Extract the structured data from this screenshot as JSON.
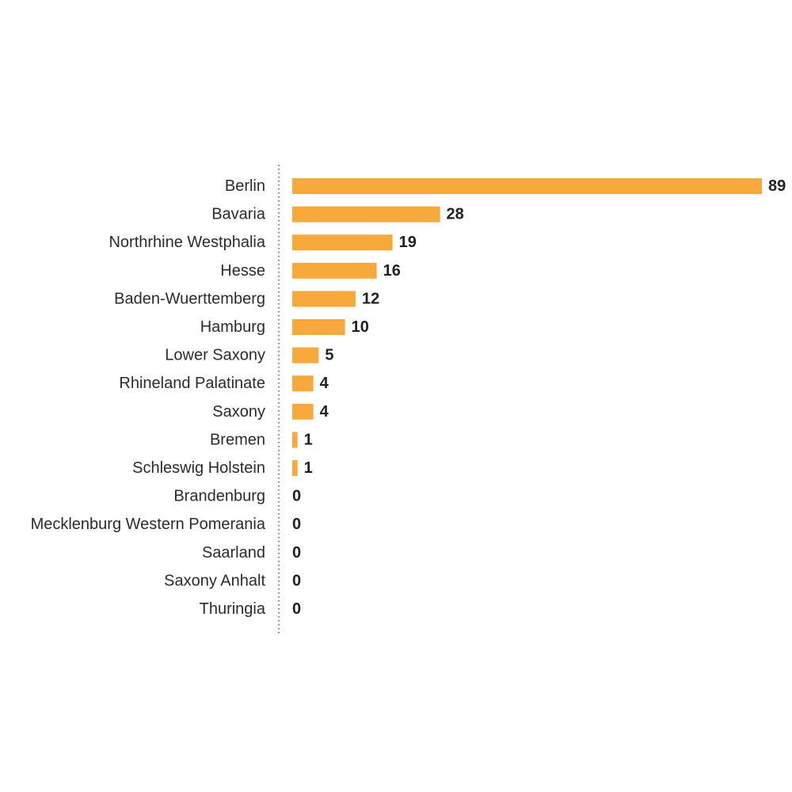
{
  "chart_data": {
    "type": "bar",
    "orientation": "horizontal",
    "title": "",
    "xlabel": "",
    "ylabel": "",
    "categories": [
      "Berlin",
      "Bavaria",
      "Northrhine Westphalia",
      "Hesse",
      "Baden-Wuerttemberg",
      "Hamburg",
      "Lower Saxony",
      "Rhineland Palatinate",
      "Saxony",
      "Bremen",
      "Schleswig Holstein",
      "Brandenburg",
      "Mecklenburg Western Pomerania",
      "Saarland",
      "Saxony Anhalt",
      "Thuringia"
    ],
    "values": [
      89,
      28,
      19,
      16,
      12,
      10,
      5,
      4,
      4,
      1,
      1,
      0,
      0,
      0,
      0,
      0
    ],
    "xlim": [
      0,
      89
    ],
    "bar_color": "#f7a93b",
    "grid": false,
    "legend": "none",
    "data_labels": true
  }
}
